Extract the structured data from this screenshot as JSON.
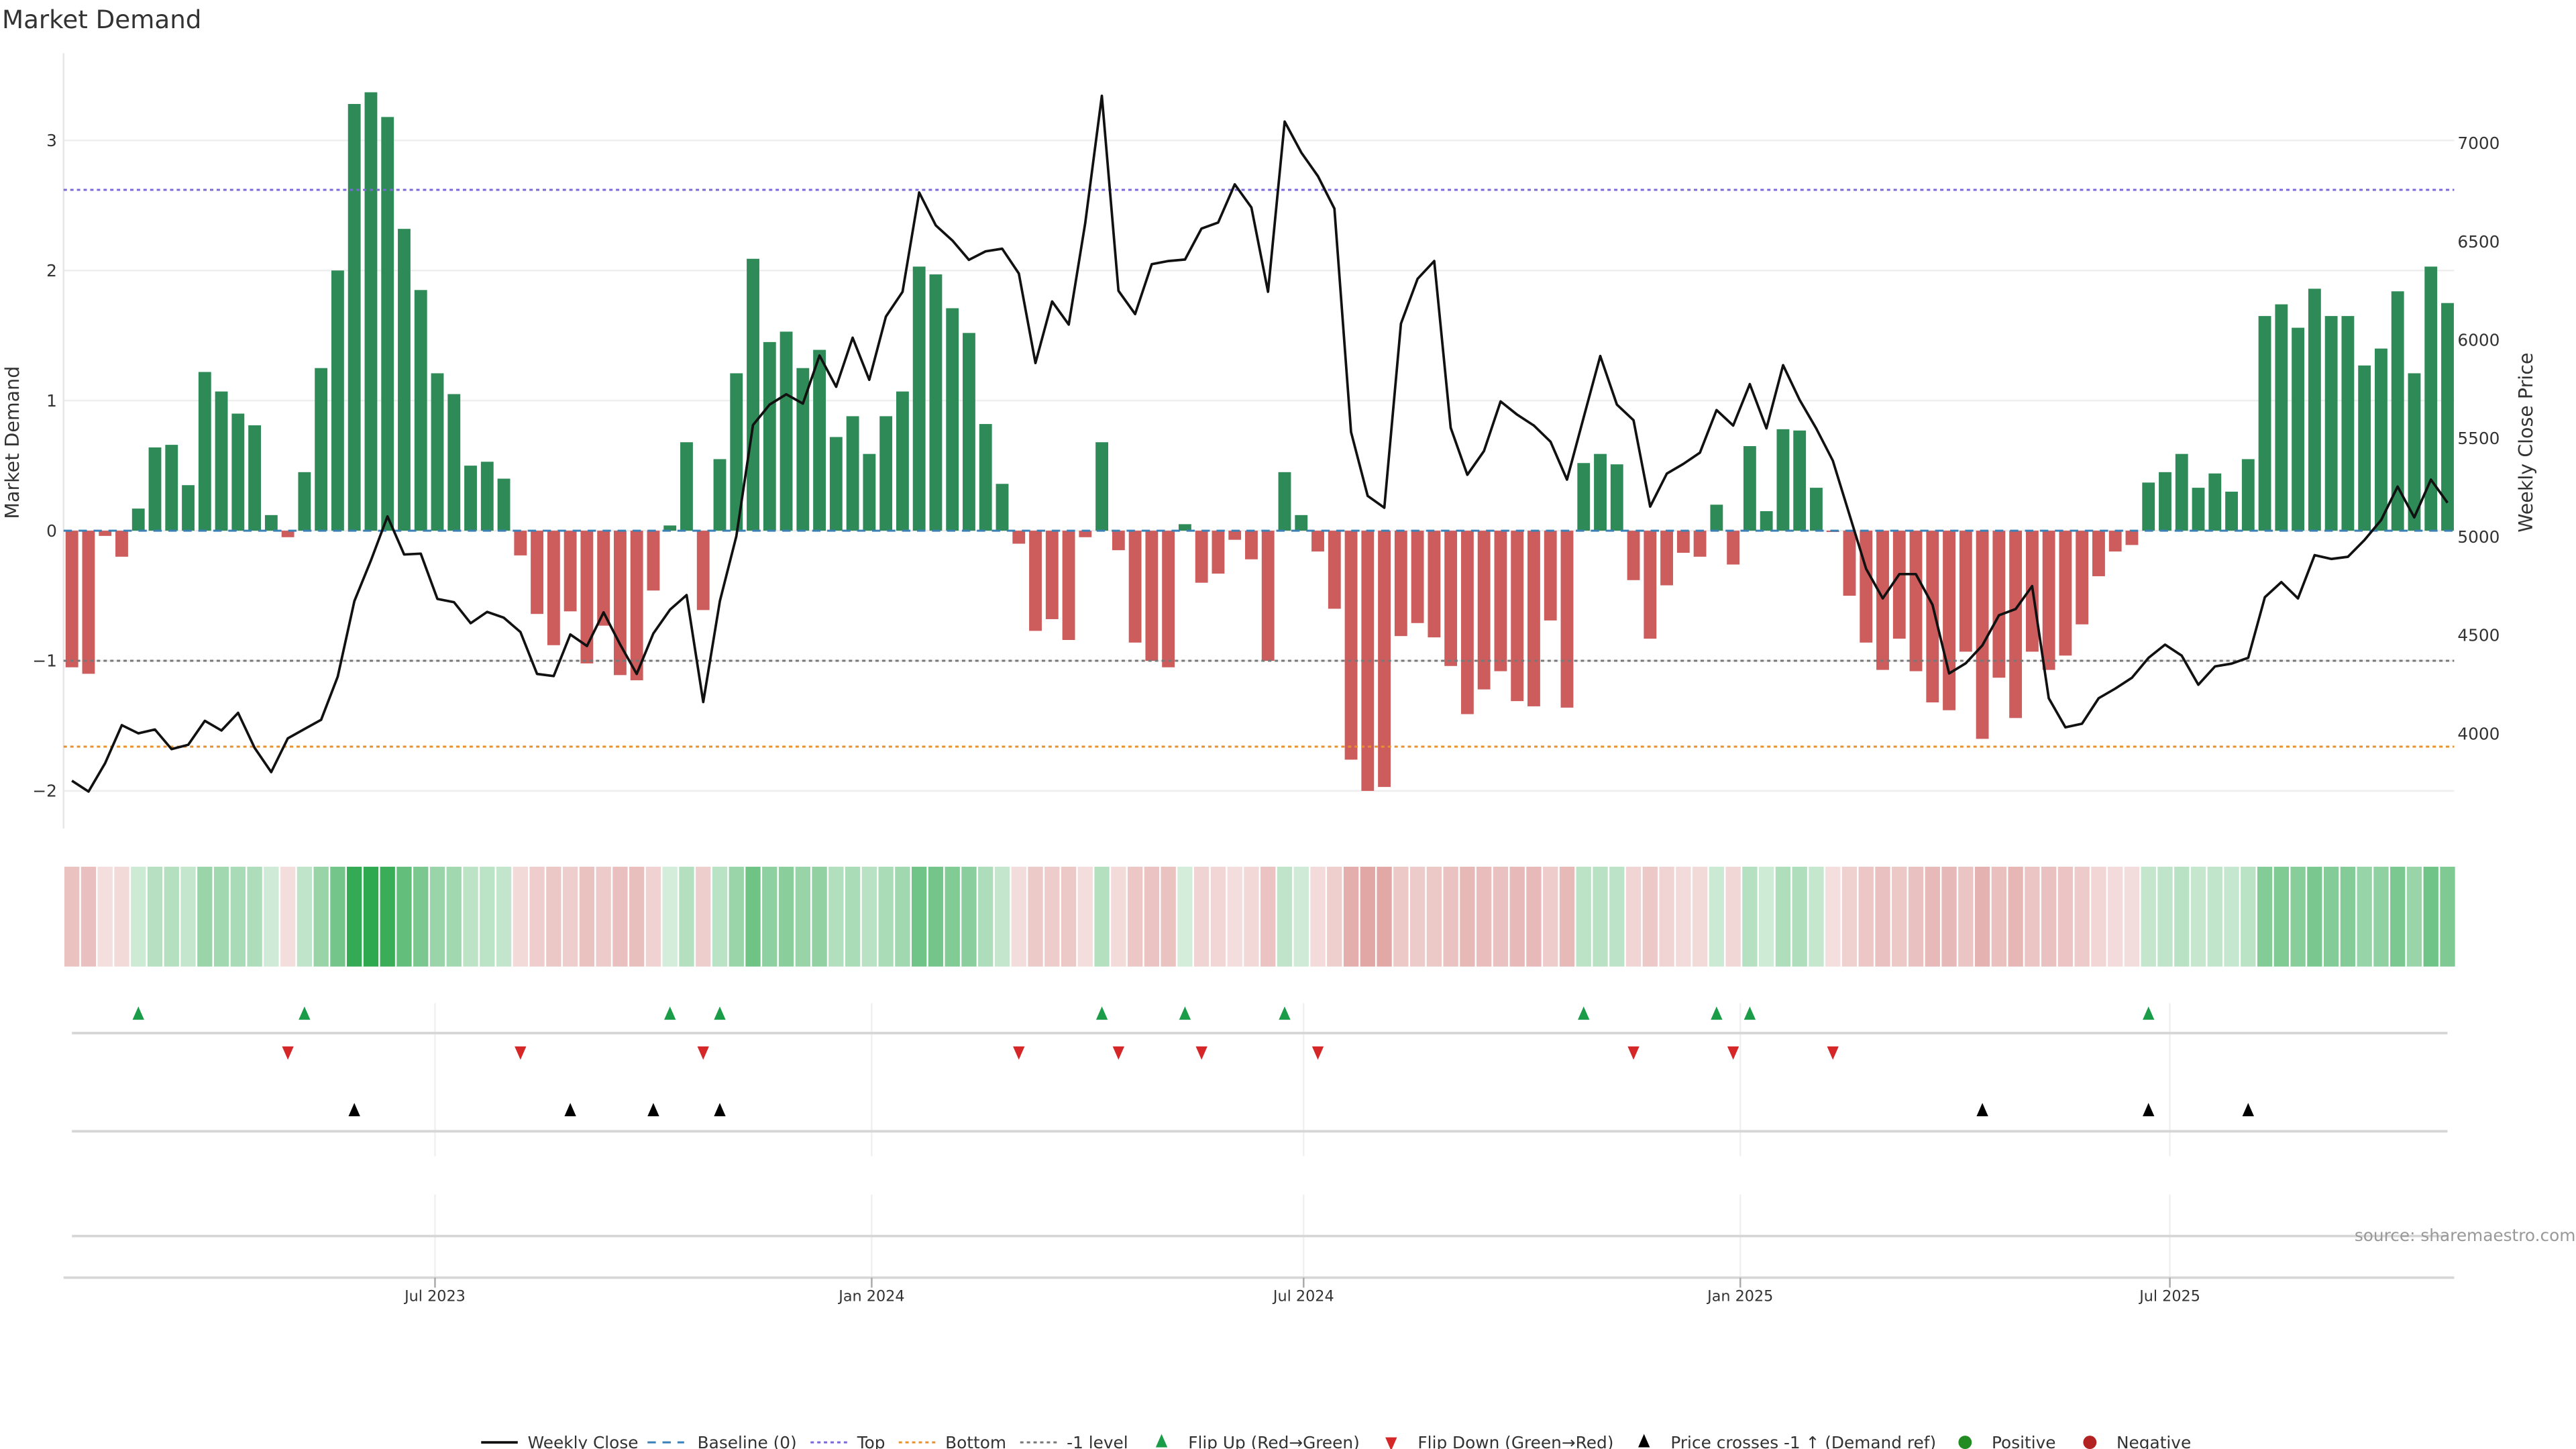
{
  "chart_data": {
    "type": "bar",
    "title": "Market Demand",
    "ylabel": "Market Demand",
    "ylabel_right": "Weekly Close Price",
    "ylim": [
      -2.3,
      3.67
    ],
    "ylim_right": [
      3700,
      7300
    ],
    "grid": "horizontal",
    "legend_position": "bottom-center",
    "source": "source: sharemaestro.com",
    "start_week": "2023-01-29",
    "frequency": "weekly",
    "y_ticks": [
      {
        "v": -2,
        "label": "−2"
      },
      {
        "v": -1,
        "label": "−1"
      },
      {
        "v": 0,
        "label": "0"
      },
      {
        "v": 1,
        "label": "1"
      },
      {
        "v": 2,
        "label": "2"
      },
      {
        "v": 3,
        "label": "3"
      }
    ],
    "y_ticks_right": [
      {
        "v": 4000,
        "label": "4000"
      },
      {
        "v": 4500,
        "label": "4500"
      },
      {
        "v": 5000,
        "label": "5000"
      },
      {
        "v": 5500,
        "label": "5500"
      },
      {
        "v": 6000,
        "label": "6000"
      },
      {
        "v": 6500,
        "label": "6500"
      },
      {
        "v": 7000,
        "label": "7000"
      }
    ],
    "x_ticks": [
      {
        "date": "2023-07-01",
        "label": "Jul 2023"
      },
      {
        "date": "2024-01-01",
        "label": "Jan 2024"
      },
      {
        "date": "2024-07-01",
        "label": "Jul 2024"
      },
      {
        "date": "2025-01-01",
        "label": "Jan 2025"
      },
      {
        "date": "2025-07-01",
        "label": "Jul 2025"
      }
    ],
    "levels": {
      "baseline": 0,
      "top": 2.62,
      "bottom": -1.66,
      "minus_one": -1
    },
    "colors": {
      "positive": "#2e8b57",
      "negative": "#cd5c5c",
      "price": "#111111",
      "baseline": "#3a7fb5",
      "top": "#7b68d9",
      "bottom": "#e8912d",
      "minus_one": "#777777",
      "flip_up": "#1a9c48",
      "flip_down": "#d62728",
      "price_cross": "#000000",
      "legend_positive": "#228b22",
      "legend_negative": "#b22222"
    },
    "demand": [
      -1.05,
      -1.1,
      -0.04,
      -0.2,
      0.17,
      0.64,
      0.66,
      0.35,
      1.22,
      1.07,
      0.9,
      0.81,
      0.12,
      -0.05,
      0.45,
      1.25,
      2.0,
      3.28,
      3.37,
      3.18,
      2.32,
      1.85,
      1.21,
      1.05,
      0.5,
      0.53,
      0.4,
      -0.19,
      -0.64,
      -0.88,
      -0.62,
      -1.02,
      -0.73,
      -1.11,
      -1.15,
      -0.46,
      0.04,
      0.68,
      -0.61,
      0.55,
      1.21,
      2.09,
      1.45,
      1.53,
      1.25,
      1.39,
      0.72,
      0.88,
      0.59,
      0.88,
      1.07,
      2.03,
      1.97,
      1.71,
      1.52,
      0.82,
      0.36,
      -0.1,
      -0.77,
      -0.68,
      -0.84,
      -0.05,
      0.68,
      -0.15,
      -0.86,
      -1.0,
      -1.05,
      0.05,
      -0.4,
      -0.33,
      -0.07,
      -0.22,
      -1.0,
      0.45,
      0.12,
      -0.16,
      -0.6,
      -1.76,
      -2.0,
      -1.97,
      -0.81,
      -0.71,
      -0.82,
      -1.04,
      -1.41,
      -1.22,
      -1.08,
      -1.31,
      -1.35,
      -0.69,
      -1.36,
      0.52,
      0.59,
      0.51,
      -0.38,
      -0.83,
      -0.42,
      -0.17,
      -0.2,
      0.2,
      -0.26,
      0.65,
      0.15,
      0.78,
      0.77,
      0.33,
      -0.01,
      -0.5,
      -0.86,
      -1.07,
      -0.83,
      -1.08,
      -1.32,
      -1.38,
      -0.93,
      -1.6,
      -1.13,
      -1.44,
      -0.93,
      -1.07,
      -0.96,
      -0.72,
      -0.35,
      -0.16,
      -0.11,
      0.37,
      0.45,
      0.59,
      0.33,
      0.44,
      0.3,
      0.55,
      1.65,
      1.74,
      1.56,
      1.86,
      1.65,
      1.65,
      1.27,
      1.4,
      1.84,
      1.21,
      2.03,
      1.75
    ],
    "weekly_close": [
      3761,
      3706,
      3851,
      4043,
      4002,
      4021,
      3922,
      3944,
      4065,
      4016,
      4106,
      3928,
      3805,
      3977,
      4024,
      4070,
      4290,
      4674,
      4879,
      5104,
      4910,
      4915,
      4685,
      4668,
      4561,
      4619,
      4589,
      4517,
      4304,
      4293,
      4504,
      4446,
      4616,
      4454,
      4304,
      4509,
      4630,
      4704,
      4161,
      4674,
      5003,
      5568,
      5672,
      5724,
      5677,
      5921,
      5762,
      6012,
      5798,
      6119,
      6245,
      6749,
      6582,
      6505,
      6407,
      6450,
      6464,
      6338,
      5883,
      6196,
      6078,
      6593,
      7240,
      6250,
      6132,
      6385,
      6401,
      6409,
      6566,
      6596,
      6791,
      6673,
      6245,
      7109,
      6952,
      6832,
      6667,
      5532,
      5208,
      5148,
      6083,
      6311,
      6401,
      5554,
      5315,
      5436,
      5688,
      5620,
      5565,
      5483,
      5291,
      5606,
      5919,
      5672,
      5592,
      5154,
      5321,
      5370,
      5428,
      5644,
      5565,
      5776,
      5551,
      5872,
      5696,
      5551,
      5387,
      5112,
      4838,
      4687,
      4811,
      4811,
      4655,
      4306,
      4358,
      4449,
      4602,
      4633,
      4750,
      4180,
      4032,
      4051,
      4180,
      4229,
      4284,
      4386,
      4452,
      4397,
      4249,
      4342,
      4356,
      4386,
      4693,
      4770,
      4687,
      4907,
      4888,
      4899,
      4984,
      5085,
      5255,
      5099,
      5291,
      5173
    ],
    "events": {
      "flip_up_week_index": [
        4,
        14,
        36,
        39,
        62,
        67,
        73,
        91,
        99,
        101,
        125
      ],
      "flip_down_week_index": [
        13,
        27,
        38,
        57,
        63,
        68,
        75,
        94,
        100,
        106
      ],
      "price_cross_week_index": [
        17,
        30,
        35,
        39,
        115,
        125,
        131
      ]
    },
    "legend": [
      {
        "label": "Weekly Close",
        "icon": "solid-line-icon"
      },
      {
        "label": "Baseline (0)",
        "icon": "dashed-line-icon"
      },
      {
        "label": "Top",
        "icon": "dotted-line-icon"
      },
      {
        "label": "Bottom",
        "icon": "dotted-line-icon"
      },
      {
        "label": "-1 level",
        "icon": "dotted-line-icon"
      },
      {
        "label": "Flip Up (Red→Green)",
        "icon": "triangle-up-icon"
      },
      {
        "label": "Flip Down (Green→Red)",
        "icon": "triangle-down-icon"
      },
      {
        "label": "Price crosses -1 ↑ (Demand ref)",
        "icon": "triangle-up-icon"
      },
      {
        "label": "Positive",
        "icon": "circle-icon"
      },
      {
        "label": "Negative",
        "icon": "circle-icon"
      }
    ]
  }
}
